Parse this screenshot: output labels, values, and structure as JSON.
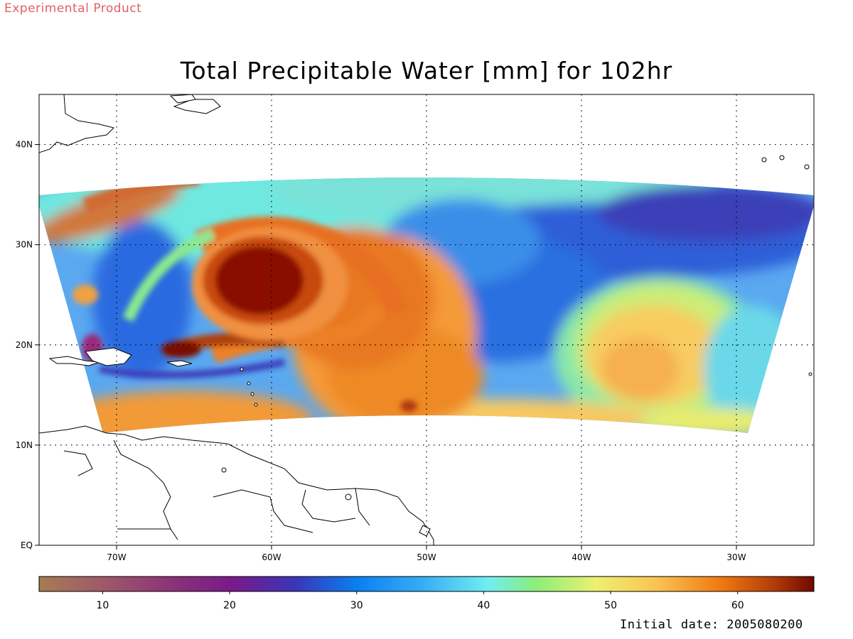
{
  "header": {
    "badge": "Experimental Product",
    "title": "Total Precipitable Water [mm] for 102hr"
  },
  "footer": {
    "initial_date": "Initial date: 2005080200"
  },
  "map": {
    "lon_range": [
      -75,
      -25
    ],
    "lat_range": [
      0,
      45
    ],
    "lon_ticks": [
      {
        "v": -70,
        "label": "70W"
      },
      {
        "v": -60,
        "label": "60W"
      },
      {
        "v": -50,
        "label": "50W"
      },
      {
        "v": -40,
        "label": "40W"
      },
      {
        "v": -30,
        "label": "30W"
      }
    ],
    "lat_ticks": [
      {
        "v": 0,
        "label": "EQ"
      },
      {
        "v": 10,
        "label": "10N"
      },
      {
        "v": 20,
        "label": "20N"
      },
      {
        "v": 30,
        "label": "30N"
      },
      {
        "v": 40,
        "label": "40N"
      }
    ],
    "grid": "dotted"
  },
  "colorbar": {
    "range": [
      5,
      66
    ],
    "ticks": [
      {
        "v": 10,
        "label": "10"
      },
      {
        "v": 20,
        "label": "20"
      },
      {
        "v": 30,
        "label": "30"
      },
      {
        "v": 40,
        "label": "40"
      },
      {
        "v": 50,
        "label": "50"
      },
      {
        "v": 60,
        "label": "60"
      }
    ],
    "colors": [
      "#a67c52",
      "#a05a6a",
      "#8a2f7a",
      "#7a1a8a",
      "#4a2aa8",
      "#2a55d8",
      "#0a7ff0",
      "#3aa8f5",
      "#70e8f0",
      "#8aee7a",
      "#e8f070",
      "#fbd060",
      "#f6a040",
      "#ef7a10",
      "#c84a10",
      "#7a0a00"
    ]
  }
}
